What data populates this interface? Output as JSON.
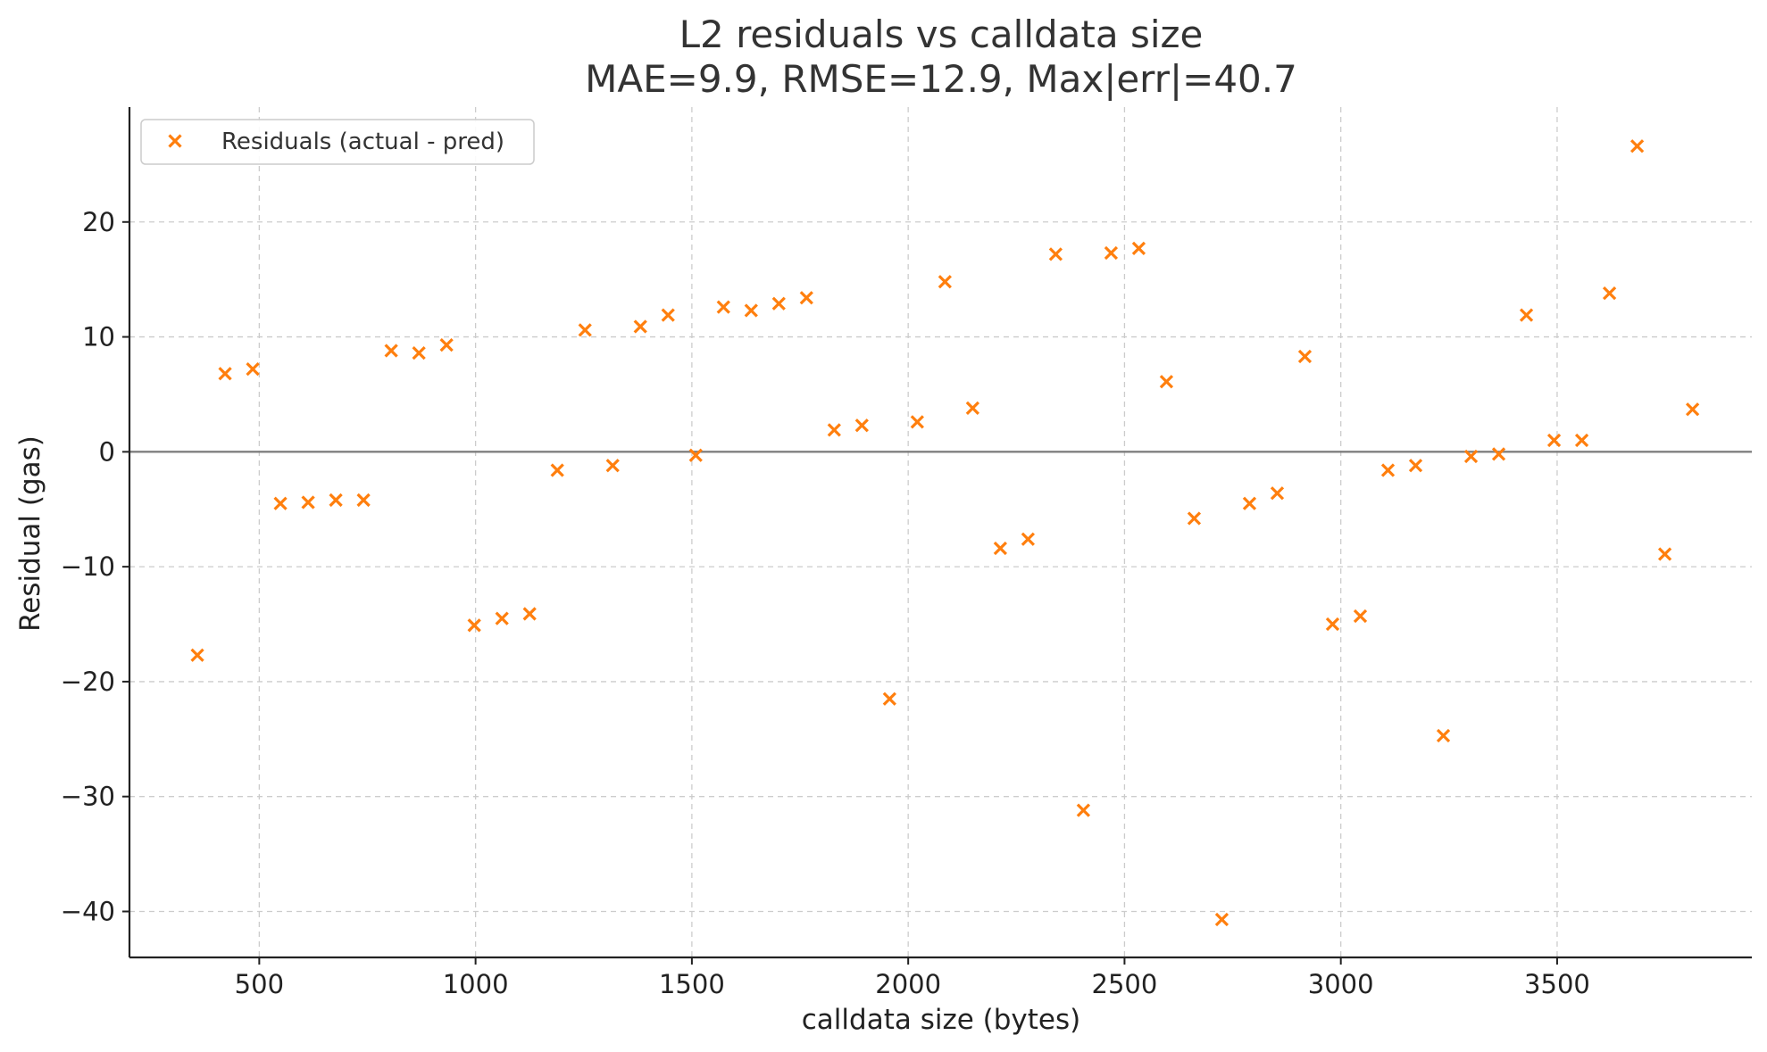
{
  "chart_data": {
    "type": "scatter",
    "title": "L2 residuals vs calldata size",
    "subtitle": "MAE=9.9, RMSE=12.9, Max|err|=40.7",
    "xlabel": "calldata size (bytes)",
    "ylabel": "Residual (gas)",
    "xlim": [
      200,
      3950
    ],
    "ylim": [
      -44,
      30
    ],
    "xticks": [
      500,
      1000,
      1500,
      2000,
      2500,
      3000,
      3500
    ],
    "yticks": [
      -40,
      -30,
      -20,
      -10,
      0,
      10,
      20
    ],
    "xtick_labels": [
      "500",
      "1000",
      "1500",
      "2000",
      "2500",
      "3000",
      "3500"
    ],
    "ytick_labels": [
      "−40",
      "−30",
      "−20",
      "−10",
      "0",
      "10",
      "20"
    ],
    "grid": true,
    "reference_line_y": 0,
    "legend_position": "top-left",
    "series": [
      {
        "name": "Residuals (actual - pred)",
        "marker": "x",
        "color": "#ff7f0e",
        "x": [
          357,
          421,
          485,
          549,
          613,
          677,
          741,
          805,
          869,
          933,
          997,
          1061,
          1125,
          1189,
          1253,
          1317,
          1381,
          1445,
          1509,
          1573,
          1637,
          1701,
          1765,
          1829,
          1893,
          1957,
          2021,
          2085,
          2149,
          2213,
          2277,
          2341,
          2405,
          2469,
          2533,
          2597,
          2661,
          2725,
          2789,
          2853,
          2917,
          2981,
          3045,
          3109,
          3173,
          3237,
          3301,
          3365,
          3429,
          3493,
          3557,
          3621,
          3685,
          3749,
          3813
        ],
        "y": [
          -17.7,
          6.8,
          7.2,
          -4.5,
          -4.4,
          -4.2,
          -4.2,
          8.8,
          8.6,
          9.3,
          -15.1,
          -14.5,
          -14.1,
          -1.6,
          10.6,
          -1.2,
          10.9,
          11.9,
          -0.3,
          12.6,
          12.3,
          12.9,
          13.4,
          1.9,
          2.3,
          -21.5,
          2.6,
          14.8,
          3.8,
          -8.4,
          -7.6,
          17.2,
          -31.2,
          17.3,
          17.7,
          6.1,
          -5.8,
          -40.7,
          -4.5,
          -3.6,
          8.3,
          -15.0,
          -14.3,
          -1.6,
          -1.2,
          -24.7,
          -0.4,
          -0.2,
          11.9,
          1.0,
          1.0,
          13.8,
          26.6,
          -8.9,
          3.7
        ]
      }
    ]
  }
}
